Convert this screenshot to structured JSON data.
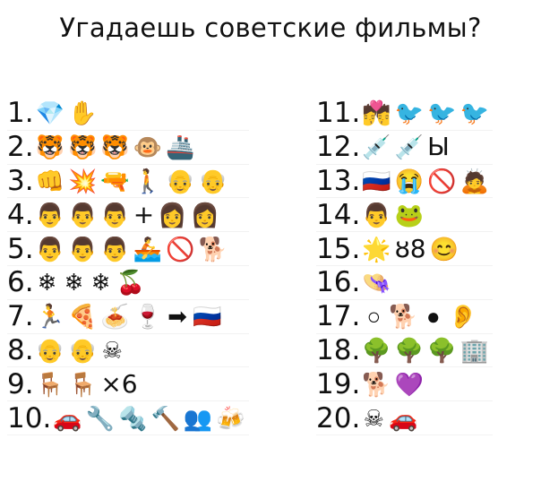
{
  "title": "Угадаешь советские фильмы?",
  "puzzles": [
    {
      "num": "1.",
      "tokens": [
        {
          "icon": "gem-icon",
          "glyph": "💎"
        },
        {
          "icon": "raised-hand-icon",
          "glyph": "✋"
        }
      ]
    },
    {
      "num": "2.",
      "tokens": [
        {
          "icon": "tiger-face-icon",
          "glyph": "🐯"
        },
        {
          "icon": "tiger-face-icon",
          "glyph": "🐯"
        },
        {
          "icon": "tiger-face-icon",
          "glyph": "🐯"
        },
        {
          "icon": "monkey-face-icon",
          "glyph": "🐵"
        },
        {
          "icon": "ship-icon",
          "glyph": "🚢"
        }
      ]
    },
    {
      "num": "3.",
      "tokens": [
        {
          "icon": "fist-icon",
          "glyph": "👊"
        },
        {
          "icon": "collision-icon",
          "glyph": "💥"
        },
        {
          "icon": "pistol-icon",
          "glyph": "🔫"
        },
        {
          "icon": "walking-person-icon",
          "glyph": "🚶"
        },
        {
          "icon": "old-man-icon",
          "glyph": "👴"
        },
        {
          "icon": "old-man-icon",
          "glyph": "👴"
        }
      ]
    },
    {
      "num": "4.",
      "tokens": [
        {
          "icon": "man-icon",
          "glyph": "👨"
        },
        {
          "icon": "man-icon",
          "glyph": "👨"
        },
        {
          "icon": "man-icon",
          "glyph": "👨"
        },
        {
          "icon": "plus",
          "text": "+"
        },
        {
          "icon": "woman-icon",
          "glyph": "👩"
        },
        {
          "icon": "woman-icon",
          "glyph": "👩"
        }
      ]
    },
    {
      "num": "5.",
      "tokens": [
        {
          "icon": "man-icon",
          "glyph": "👨"
        },
        {
          "icon": "man-icon",
          "glyph": "👨"
        },
        {
          "icon": "man-icon",
          "glyph": "👨"
        },
        {
          "icon": "rowboat-icon",
          "glyph": "🚣"
        },
        {
          "icon": "prohibited-icon",
          "glyph": "🚫"
        },
        {
          "icon": "dog-icon",
          "glyph": "🐕"
        }
      ]
    },
    {
      "num": "6.",
      "tokens": [
        {
          "icon": "snowflake-icon",
          "glyph": "❄"
        },
        {
          "icon": "snowflake-icon",
          "glyph": "❄"
        },
        {
          "icon": "snowflake-icon",
          "glyph": "❄"
        },
        {
          "icon": "cherries-icon",
          "glyph": "🍒"
        }
      ]
    },
    {
      "num": "7.",
      "tokens": [
        {
          "icon": "running-person-icon",
          "glyph": "🏃"
        },
        {
          "icon": "pizza-icon",
          "glyph": "🍕"
        },
        {
          "icon": "spaghetti-icon",
          "glyph": "🍝"
        },
        {
          "icon": "wine-glass-icon",
          "glyph": "🍷"
        },
        {
          "icon": "arrow-right-icon",
          "glyph": "➡"
        },
        {
          "icon": "russia-flag-icon",
          "glyph": "🇷🇺"
        }
      ]
    },
    {
      "num": "8.",
      "tokens": [
        {
          "icon": "old-man-icon",
          "glyph": "👴"
        },
        {
          "icon": "old-man-icon",
          "glyph": "👴"
        },
        {
          "icon": "skull-crossbones-icon",
          "glyph": "☠"
        }
      ]
    },
    {
      "num": "9.",
      "tokens": [
        {
          "icon": "chair-icon",
          "glyph": "🪑"
        },
        {
          "icon": "chair-icon",
          "glyph": "🪑"
        },
        {
          "icon": "times-six",
          "text": "×6"
        }
      ]
    },
    {
      "num": "10.",
      "tokens": [
        {
          "icon": "car-icon",
          "glyph": "🚗"
        },
        {
          "icon": "wrench-icon",
          "glyph": "🔧"
        },
        {
          "icon": "nut-bolt-icon",
          "glyph": "🔩"
        },
        {
          "icon": "hammer-icon",
          "glyph": "🔨"
        },
        {
          "icon": "people-icon",
          "glyph": "👥"
        },
        {
          "icon": "beer-mugs-icon",
          "glyph": "🍻"
        }
      ]
    },
    {
      "num": "11.",
      "tokens": [
        {
          "icon": "kiss-couple-icon",
          "glyph": "💏"
        },
        {
          "icon": "bird-icon",
          "glyph": "🐦"
        },
        {
          "icon": "bird-icon",
          "glyph": "🐦"
        },
        {
          "icon": "bird-icon",
          "glyph": "🐦"
        }
      ]
    },
    {
      "num": "12.",
      "tokens": [
        {
          "icon": "syringe-icon",
          "glyph": "💉"
        },
        {
          "icon": "syringe-icon",
          "glyph": "💉"
        },
        {
          "icon": "letter-yery",
          "text": "Ы"
        }
      ]
    },
    {
      "num": "13.",
      "tokens": [
        {
          "icon": "russia-flag-icon",
          "glyph": "🇷🇺"
        },
        {
          "icon": "crying-face-icon",
          "glyph": "😭"
        },
        {
          "icon": "prohibited-icon",
          "glyph": "🚫"
        },
        {
          "icon": "bowing-person-icon",
          "glyph": "🙇"
        }
      ]
    },
    {
      "num": "14.",
      "tokens": [
        {
          "icon": "man-icon",
          "glyph": "👨"
        },
        {
          "icon": "frog-icon",
          "glyph": "🐸"
        }
      ]
    },
    {
      "num": "15.",
      "tokens": [
        {
          "icon": "glowing-star-icon",
          "glyph": "🌟"
        },
        {
          "icon": "dna-icon",
          "text": "ȣ8"
        },
        {
          "icon": "smiling-face-icon",
          "glyph": "😊"
        }
      ]
    },
    {
      "num": "16.",
      "tokens": [
        {
          "icon": "hat-icon",
          "glyph": "👒"
        }
      ]
    },
    {
      "num": "17.",
      "tokens": [
        {
          "icon": "white-circle-icon",
          "glyph": "○"
        },
        {
          "icon": "dog-icon",
          "glyph": "🐕"
        },
        {
          "icon": "black-circle-icon",
          "glyph": "●"
        },
        {
          "icon": "ear-icon",
          "glyph": "👂"
        }
      ]
    },
    {
      "num": "18.",
      "tokens": [
        {
          "icon": "tree-icon",
          "glyph": "🌳"
        },
        {
          "icon": "tree-icon",
          "glyph": "🌳"
        },
        {
          "icon": "tree-icon",
          "glyph": "🌳"
        },
        {
          "icon": "office-building-icon",
          "glyph": "🏢"
        }
      ]
    },
    {
      "num": "19.",
      "tokens": [
        {
          "icon": "dog-icon",
          "glyph": "🐕"
        },
        {
          "icon": "purple-heart-icon",
          "glyph": "💜"
        }
      ]
    },
    {
      "num": "20.",
      "tokens": [
        {
          "icon": "skull-crossbones-icon",
          "glyph": "☠"
        },
        {
          "icon": "car-icon",
          "glyph": "🚗"
        }
      ]
    }
  ]
}
